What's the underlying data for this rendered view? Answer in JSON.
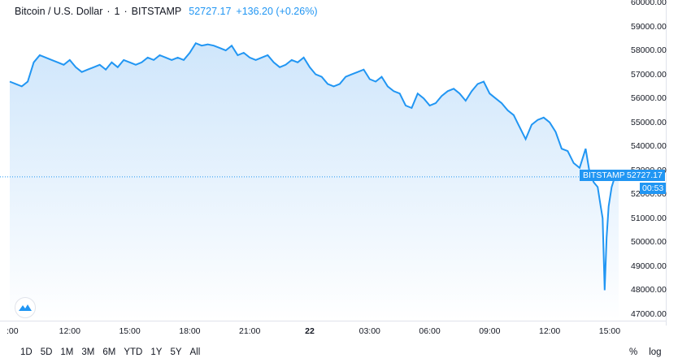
{
  "legend": {
    "symbol": "Bitcoin / U.S. Dollar",
    "interval": "1",
    "exchange": "BITSTAMP",
    "last": "52727.17",
    "change": "+136.20 (+0.26%)"
  },
  "price_tag": {
    "exchange": "BITSTAMP",
    "price": "52727.17",
    "countdown": "00:53"
  },
  "range_buttons": [
    "1D",
    "5D",
    "1M",
    "3M",
    "6M",
    "YTD",
    "1Y",
    "5Y",
    "All"
  ],
  "axis_options": {
    "percent": "%",
    "log": "log"
  },
  "colors": {
    "line": "#2196f3",
    "area_top": "#cfe6fb",
    "area_bottom": "#ffffff",
    "dotted": "#2196f3"
  },
  "chart_data": {
    "type": "area",
    "y_ticks": [
      "47000.00",
      "48000.00",
      "49000.00",
      "50000.00",
      "51000.00",
      "52000.00",
      "53000.00",
      "54000.00",
      "55000.00",
      "56000.00",
      "57000.00",
      "58000.00",
      "59000.00",
      "60000.00"
    ],
    "x_ticks": [
      {
        "label": ":00",
        "hour": 9,
        "bold": false
      },
      {
        "label": "12:00",
        "hour": 12,
        "bold": false
      },
      {
        "label": "15:00",
        "hour": 15,
        "bold": false
      },
      {
        "label": "18:00",
        "hour": 18,
        "bold": false
      },
      {
        "label": "21:00",
        "hour": 21,
        "bold": false
      },
      {
        "label": "22",
        "hour": 24,
        "bold": true
      },
      {
        "label": "03:00",
        "hour": 27,
        "bold": false
      },
      {
        "label": "06:00",
        "hour": 30,
        "bold": false
      },
      {
        "label": "09:00",
        "hour": 33,
        "bold": false
      },
      {
        "label": "12:00",
        "hour": 36,
        "bold": false
      },
      {
        "label": "15:00",
        "hour": 39,
        "bold": false
      }
    ],
    "ylim": [
      46500,
      60100
    ],
    "xlim_hours": [
      9.0,
      39.45
    ],
    "last_price": 52727.17,
    "series": [
      {
        "x": [
          9.0,
          9.3,
          9.6,
          9.9,
          10.2,
          10.5,
          10.8,
          11.1,
          11.4,
          11.7,
          12.0,
          12.3,
          12.6,
          12.9,
          13.2,
          13.5,
          13.8,
          14.1,
          14.4,
          14.7,
          15.0,
          15.3,
          15.6,
          15.9,
          16.2,
          16.5,
          16.8,
          17.1,
          17.4,
          17.7,
          18.0,
          18.3,
          18.6,
          18.9,
          19.2,
          19.5,
          19.8,
          20.1,
          20.4,
          20.7,
          21.0,
          21.3,
          21.6,
          21.9,
          22.2,
          22.5,
          22.8,
          23.1,
          23.4,
          23.7,
          24.0,
          24.3,
          24.6,
          24.9,
          25.2,
          25.5,
          25.8,
          26.1,
          26.4,
          26.7,
          27.0,
          27.3,
          27.6,
          27.9,
          28.2,
          28.5,
          28.8,
          29.1,
          29.4,
          29.7,
          30.0,
          30.3,
          30.6,
          30.9,
          31.2,
          31.5,
          31.8,
          32.1,
          32.4,
          32.7,
          33.0,
          33.3,
          33.6,
          33.9,
          34.2,
          34.5,
          34.8,
          35.1,
          35.4,
          35.7,
          36.0,
          36.3,
          36.6,
          36.9,
          37.2,
          37.5,
          37.8,
          38.0,
          38.2,
          38.4,
          38.55,
          38.65,
          38.75,
          38.85,
          38.95,
          39.1,
          39.25,
          39.45
        ],
        "values": [
          56700,
          56600,
          56500,
          56700,
          57500,
          57800,
          57700,
          57600,
          57500,
          57400,
          57600,
          57300,
          57100,
          57200,
          57300,
          57400,
          57200,
          57500,
          57300,
          57600,
          57500,
          57400,
          57500,
          57700,
          57600,
          57800,
          57700,
          57600,
          57700,
          57600,
          57900,
          58300,
          58200,
          58250,
          58200,
          58100,
          58000,
          58200,
          57800,
          57900,
          57700,
          57600,
          57700,
          57800,
          57500,
          57300,
          57400,
          57600,
          57500,
          57700,
          57300,
          57000,
          56900,
          56600,
          56500,
          56600,
          56900,
          57000,
          57100,
          57200,
          56800,
          56700,
          56900,
          56500,
          56300,
          56200,
          55700,
          55600,
          56200,
          56000,
          55700,
          55800,
          56100,
          56300,
          56400,
          56200,
          55900,
          56300,
          56600,
          56700,
          56200,
          56000,
          55800,
          55500,
          55300,
          54800,
          54300,
          54900,
          55100,
          55200,
          55000,
          54600,
          53900,
          53800,
          53300,
          53100,
          53900,
          52900,
          52500,
          52300,
          51500,
          51000,
          48000,
          50200,
          51500,
          52300,
          52700,
          52727
        ]
      }
    ]
  }
}
